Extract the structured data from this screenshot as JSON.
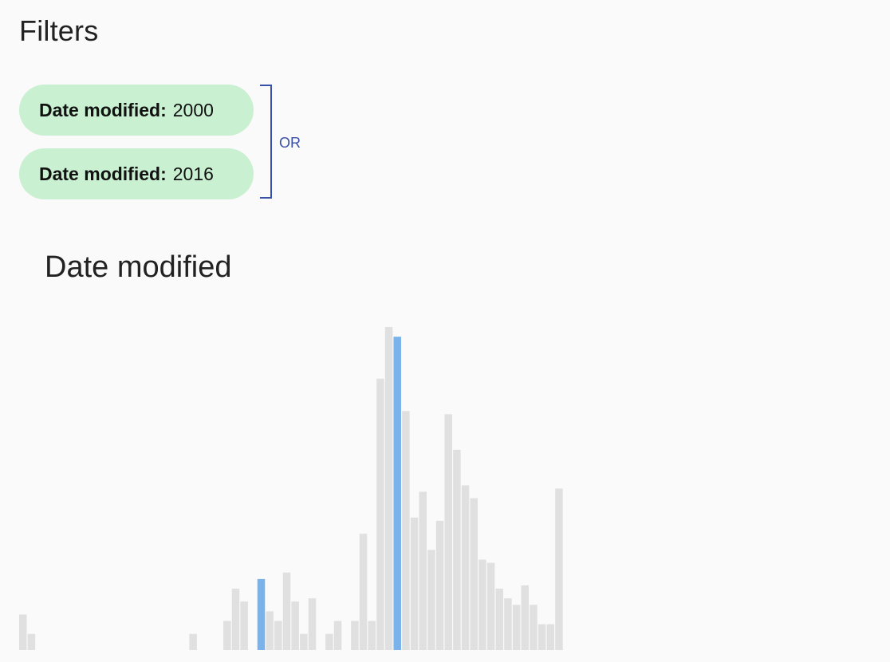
{
  "filters": {
    "title": "Filters",
    "chips": [
      {
        "label": "Date modified:",
        "value": "2000"
      },
      {
        "label": "Date modified:",
        "value": "2016"
      }
    ],
    "combinator": "OR",
    "bracket_color": "#3a4fa7",
    "chip_color": "#c9f0d1"
  },
  "chart": {
    "title": "Date modified"
  },
  "chart_data": {
    "type": "bar",
    "title": "Date modified",
    "xlabel": "",
    "ylabel": "",
    "bar_color": "#e0e0e0",
    "highlight_color": "#7ab3ec",
    "highlighted_indices": [
      28,
      44
    ],
    "values": [
      11,
      5,
      0,
      0,
      0,
      0,
      0,
      0,
      0,
      0,
      0,
      0,
      0,
      0,
      0,
      0,
      0,
      0,
      0,
      0,
      5,
      0,
      0,
      0,
      9,
      19,
      15,
      0,
      22,
      12,
      9,
      24,
      15,
      5,
      16,
      0,
      5,
      9,
      0,
      9,
      36,
      9,
      84,
      100,
      97,
      74,
      41,
      49,
      31,
      40,
      73,
      62,
      51,
      47,
      28,
      27,
      19,
      16,
      14,
      20,
      14,
      8,
      8,
      50
    ]
  }
}
